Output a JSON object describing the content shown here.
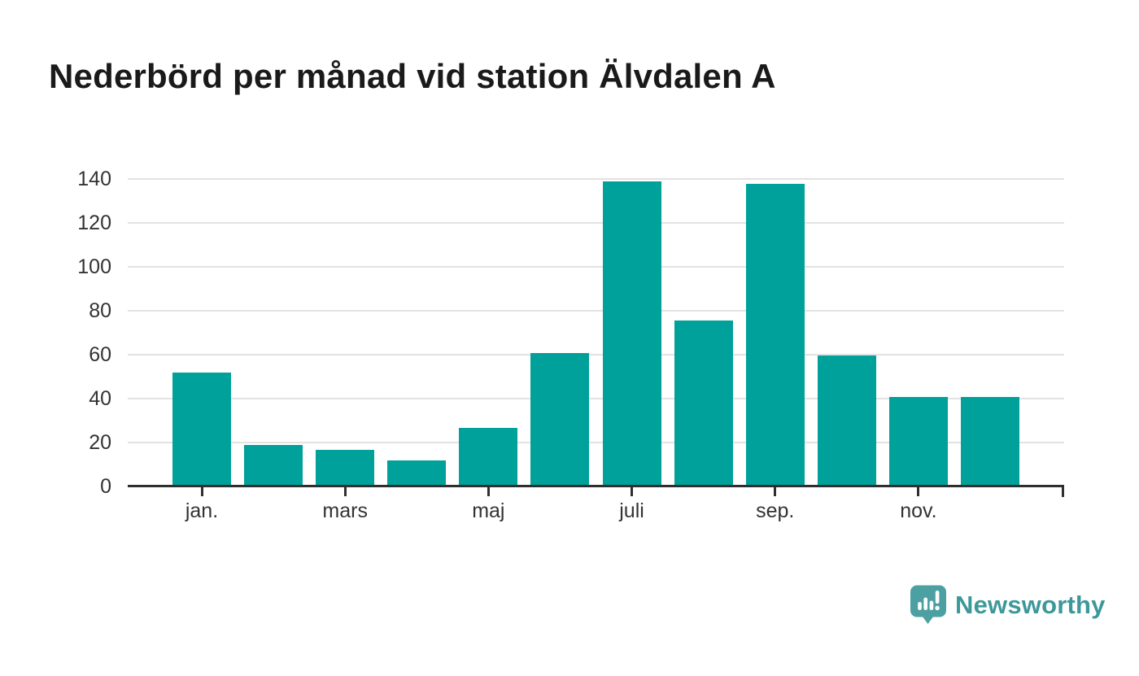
{
  "title": "Nederbörd per månad vid station Älvdalen A",
  "chart_data": {
    "type": "bar",
    "title": "Nederbörd per månad vid station Älvdalen A",
    "categories": [
      "jan.",
      "",
      "mars",
      "",
      "maj",
      "",
      "juli",
      "",
      "sep.",
      "",
      "nov.",
      ""
    ],
    "values": [
      51,
      18,
      16,
      11,
      26,
      60,
      138,
      75,
      137,
      59,
      40,
      40
    ],
    "xlabel": "",
    "ylabel": "",
    "ylim": [
      0,
      140
    ],
    "yticks": [
      0,
      20,
      40,
      60,
      80,
      100,
      120,
      140
    ],
    "grid": "horizontal-only",
    "legend": "none",
    "bar_color": "#00a19a"
  },
  "colors": {
    "bar": "#00a19a",
    "axis": "#2f2f2f",
    "gridline": "#e2e2e2",
    "tick_label": "#333333",
    "title": "#1a1a1a",
    "logo_text": "#3d9899",
    "logo_icon": "#4da0a1"
  },
  "branding": {
    "logo_text": "Newsworthy",
    "logo_icon": "bar-chart-speech-bubble-icon"
  }
}
